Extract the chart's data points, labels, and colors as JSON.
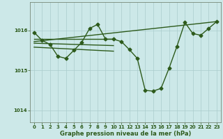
{
  "xlabel": "Graphe pression niveau de la mer (hPa)",
  "bg_color": "#cce8e8",
  "grid_color": "#aacccc",
  "line_color": "#2d5a1b",
  "ylim": [
    1013.7,
    1016.7
  ],
  "xlim": [
    -0.5,
    23.5
  ],
  "yticks": [
    1014,
    1015,
    1016
  ],
  "xticks": [
    0,
    1,
    2,
    3,
    4,
    5,
    6,
    7,
    8,
    9,
    10,
    11,
    12,
    13,
    14,
    15,
    16,
    17,
    18,
    19,
    20,
    21,
    22,
    23
  ],
  "main_x": [
    0,
    1,
    2,
    3,
    4,
    5,
    6,
    7,
    8,
    9,
    10,
    11,
    12,
    13,
    14,
    15,
    16,
    17,
    18,
    19,
    20,
    21,
    22,
    23
  ],
  "main_y": [
    1015.95,
    1015.75,
    1015.65,
    1015.35,
    1015.3,
    1015.5,
    1015.7,
    1016.05,
    1016.15,
    1015.78,
    1015.78,
    1015.72,
    1015.52,
    1015.3,
    1014.5,
    1014.48,
    1014.55,
    1015.05,
    1015.6,
    1016.2,
    1015.92,
    1015.88,
    1016.05,
    1016.22
  ],
  "trend_line": {
    "x": [
      0,
      23
    ],
    "y": [
      1015.72,
      1016.22
    ]
  },
  "extra_lines": [
    {
      "x": [
        0,
        10
      ],
      "y": [
        1015.78,
        1015.78
      ]
    },
    {
      "x": [
        0,
        10
      ],
      "y": [
        1015.68,
        1015.62
      ]
    },
    {
      "x": [
        0,
        10
      ],
      "y": [
        1015.58,
        1015.48
      ]
    }
  ],
  "marker_size": 2.5,
  "line_width": 1.0,
  "tick_fontsize": 5,
  "xlabel_fontsize": 6
}
